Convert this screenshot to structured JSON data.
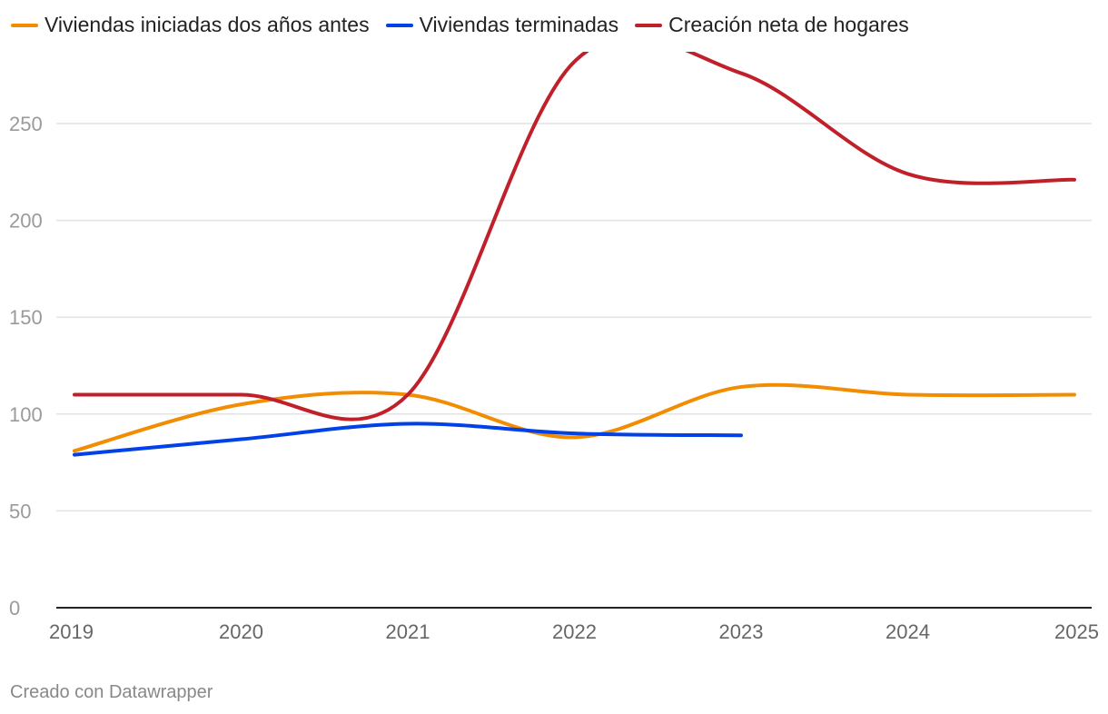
{
  "chart_data": {
    "type": "line",
    "x": [
      2019,
      2020,
      2021,
      2022,
      2023,
      2024,
      2025
    ],
    "series": [
      {
        "name": "Viviendas iniciadas dos años antes",
        "color": "#f28c00",
        "values": [
          81,
          105,
          110,
          88,
          114,
          110,
          110
        ]
      },
      {
        "name": "Viviendas terminadas",
        "color": "#0041e8",
        "values": [
          79,
          87,
          95,
          90,
          89,
          null,
          null
        ]
      },
      {
        "name": "Creación neta de hogares",
        "color": "#c0202a",
        "values": [
          110,
          110,
          110,
          282,
          276,
          224,
          221
        ]
      }
    ],
    "xlabel": "",
    "ylabel": "",
    "ylim": [
      0,
      280
    ],
    "yticks": [
      0,
      50,
      100,
      150,
      200,
      250
    ],
    "grid": true,
    "legend": "top-left"
  },
  "footer": {
    "credit": "Creado con Datawrapper"
  }
}
